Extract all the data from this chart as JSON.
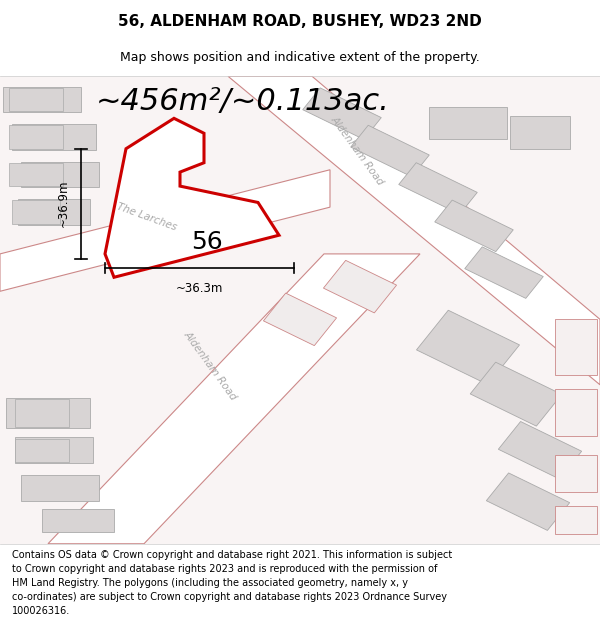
{
  "title": "56, ALDENHAM ROAD, BUSHEY, WD23 2ND",
  "subtitle": "Map shows position and indicative extent of the property.",
  "area_text": "~456m²/~0.113ac.",
  "label_56": "56",
  "dim_horizontal": "~36.3m",
  "dim_vertical": "~36.9m",
  "road_label_upper": "Aldenham Road",
  "road_label_lower": "Aldenham Road",
  "road_label_larches": "The Larches",
  "footer_text": "Contains OS data © Crown copyright and database right 2021. This information is subject\nto Crown copyright and database rights 2023 and is reproduced with the permission of\nHM Land Registry. The polygons (including the associated geometry, namely x, y\nco-ordinates) are subject to Crown copyright and database rights 2023 Ordnance Survey\n100026316.",
  "bg_color": "#ffffff",
  "map_bg": "#f9f4f4",
  "building_fill": "#e8e2e2",
  "building_edge": "#cc8888",
  "building_fill_gray": "#d8d4d4",
  "building_edge_gray": "#aaaaaa",
  "road_fill": "#ffffff",
  "road_edge": "#cc8888",
  "highlight_edge": "#cc0000",
  "title_fontsize": 11,
  "subtitle_fontsize": 9,
  "area_fontsize": 22,
  "label_fontsize": 18,
  "footer_fontsize": 7.0,
  "dim_fontsize": 8.5
}
